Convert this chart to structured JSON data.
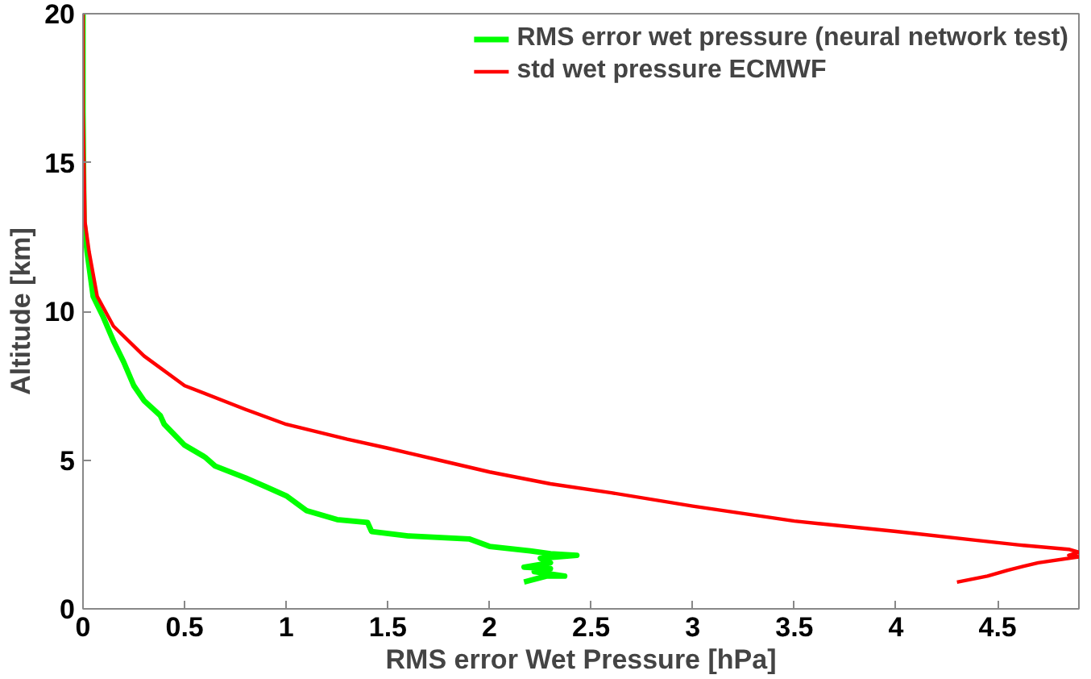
{
  "chart_data": {
    "type": "line",
    "xlabel": "RMS error Wet Pressure [hPa]",
    "ylabel": "Altitude [km]",
    "xlim": [
      0,
      4.9
    ],
    "ylim": [
      0,
      20
    ],
    "xticks": [
      0,
      0.5,
      1,
      1.5,
      2,
      2.5,
      3,
      3.5,
      4,
      4.5
    ],
    "yticks": [
      0,
      5,
      10,
      15,
      20
    ],
    "grid": false,
    "legend": "top right",
    "marker": "none",
    "line_style": "solid",
    "series": [
      {
        "name": "RMS error wet pressure (neural network test)",
        "color": "#00ff00",
        "x": [
          0,
          0,
          0.005,
          0.02,
          0.05,
          0.1,
          0.15,
          0.2,
          0.25,
          0.3,
          0.38,
          0.4,
          0.5,
          0.6,
          0.65,
          0.8,
          0.9,
          1.0,
          1.1,
          1.25,
          1.4,
          1.42,
          1.6,
          1.9,
          2.0,
          2.2,
          2.3,
          2.43,
          2.25,
          2.3,
          2.17,
          2.3,
          2.22,
          2.37,
          2.28,
          2.17
        ],
        "values": [
          20,
          16.7,
          13,
          12,
          10.5,
          9.8,
          9,
          8.3,
          7.5,
          7,
          6.5,
          6.2,
          5.5,
          5.1,
          4.8,
          4.4,
          4.1,
          3.8,
          3.3,
          3.0,
          2.9,
          2.6,
          2.45,
          2.35,
          2.1,
          1.95,
          1.85,
          1.8,
          1.7,
          1.55,
          1.4,
          1.35,
          1.25,
          1.1,
          1.1,
          0.9
        ]
      },
      {
        "name": "std wet pressure ECMWF",
        "color": "#ff0000",
        "x": [
          0,
          0,
          0.01,
          0.03,
          0.07,
          0.15,
          0.3,
          0.5,
          0.8,
          1.0,
          1.3,
          1.5,
          1.75,
          2.0,
          2.3,
          2.6,
          3.0,
          3.5,
          4.0,
          4.4,
          4.6,
          4.85,
          4.9,
          4.85,
          4.9,
          4.7,
          4.55,
          4.45,
          4.3
        ],
        "values": [
          20,
          16.7,
          13,
          12,
          10.5,
          9.5,
          8.5,
          7.5,
          6.7,
          6.2,
          5.7,
          5.4,
          5.0,
          4.6,
          4.2,
          3.9,
          3.45,
          2.95,
          2.6,
          2.3,
          2.15,
          2.0,
          1.9,
          1.8,
          1.75,
          1.55,
          1.3,
          1.1,
          0.9
        ]
      }
    ]
  }
}
